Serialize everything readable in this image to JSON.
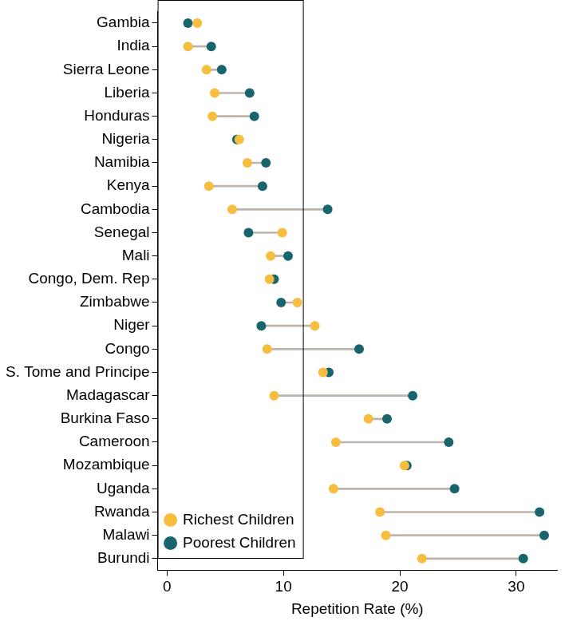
{
  "chart_data": {
    "type": "dumbbell",
    "orientation": "horizontal",
    "categories": [
      "Gambia",
      "India",
      "Sierra Leone",
      "Liberia",
      "Honduras",
      "Nigeria",
      "Namibia",
      "Kenya",
      "Cambodia",
      "Senegal",
      "Mali",
      "Congo, Dem. Rep",
      "Zimbabwe",
      "Niger",
      "Congo",
      "S. Tome and Principe",
      "Madagascar",
      "Burkina Faso",
      "Cameroon",
      "Mozambique",
      "Uganda",
      "Rwanda",
      "Malawi",
      "Burundi"
    ],
    "series": [
      {
        "name": "Poorest Children",
        "color": "#19656e",
        "marker": "circle",
        "values": [
          1.8,
          3.8,
          4.7,
          7.1,
          7.5,
          6.0,
          8.5,
          8.2,
          13.8,
          7.0,
          10.4,
          9.2,
          9.8,
          8.1,
          16.5,
          13.9,
          21.1,
          18.9,
          24.2,
          20.6,
          24.7,
          32.0,
          32.4,
          30.6
        ]
      },
      {
        "name": "Richest Children",
        "color": "#f7bd3f",
        "marker": "circle",
        "values": [
          2.6,
          1.8,
          3.4,
          4.1,
          3.9,
          6.2,
          6.9,
          3.6,
          5.6,
          9.9,
          8.9,
          8.8,
          11.2,
          12.7,
          8.6,
          13.4,
          9.2,
          17.3,
          14.5,
          20.4,
          14.3,
          18.3,
          18.8,
          21.9
        ]
      }
    ],
    "x_label": "Repetition Rate (%)",
    "xlim": [
      -0.8,
      33.5
    ],
    "xticks": [
      0,
      10,
      20,
      30
    ],
    "grid": false,
    "legend": "upper right"
  }
}
